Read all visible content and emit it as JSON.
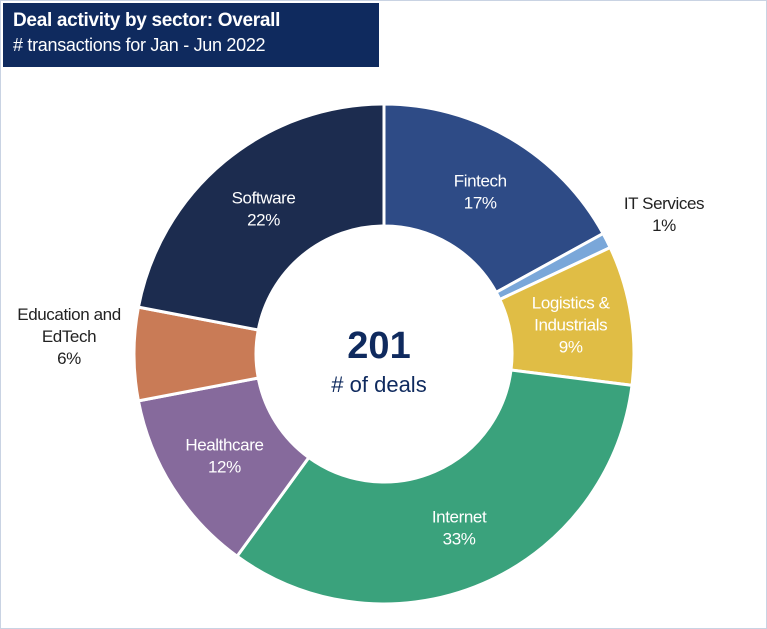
{
  "header": {
    "title": "Deal activity by sector: Overall",
    "subtitle": "# transactions for Jan - Jun 2022"
  },
  "center": {
    "value": "201",
    "label": "# of deals"
  },
  "chart_data": {
    "type": "pie",
    "variant": "donut",
    "title": "Deal activity by sector: Overall",
    "subtitle": "# transactions for Jan - Jun 2022",
    "total": 201,
    "total_label": "# of deals",
    "slices": [
      {
        "name": "Fintech",
        "label_lines": [
          "Fintech"
        ],
        "percent": 17,
        "pct_label": "17%",
        "color": "#2e4b86",
        "text_color": "#ffffff",
        "label_inside": true
      },
      {
        "name": "IT Services",
        "label_lines": [
          "IT Services"
        ],
        "percent": 1,
        "pct_label": "1%",
        "color": "#7aa7d9",
        "text_color": "#222222",
        "label_inside": false
      },
      {
        "name": "Logistics & Industrials",
        "label_lines": [
          "Logistics &",
          "Industrials"
        ],
        "percent": 9,
        "pct_label": "9%",
        "color": "#e0bd45",
        "text_color": "#ffffff",
        "label_inside": true
      },
      {
        "name": "Internet",
        "label_lines": [
          "Internet"
        ],
        "percent": 33,
        "pct_label": "33%",
        "color": "#3aa27c",
        "text_color": "#ffffff",
        "label_inside": true
      },
      {
        "name": "Healthcare",
        "label_lines": [
          "Healthcare"
        ],
        "percent": 12,
        "pct_label": "12%",
        "color": "#866a9c",
        "text_color": "#ffffff",
        "label_inside": true
      },
      {
        "name": "Education and EdTech",
        "label_lines": [
          "Education and",
          "EdTech"
        ],
        "percent": 6,
        "pct_label": "6%",
        "color": "#c97b56",
        "text_color": "#222222",
        "label_inside": false
      },
      {
        "name": "Software",
        "label_lines": [
          "Software"
        ],
        "percent": 22,
        "pct_label": "22%",
        "color": "#1c2c4f",
        "text_color": "#ffffff",
        "label_inside": true
      }
    ],
    "center_color": "#0f2a5e"
  }
}
